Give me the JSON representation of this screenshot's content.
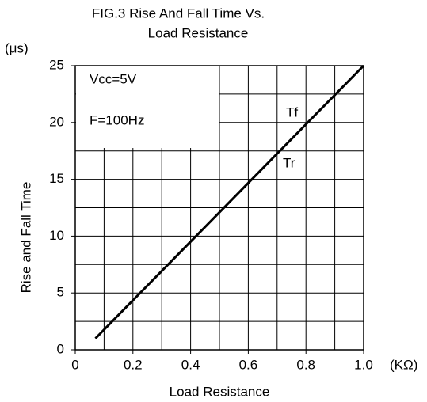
{
  "chart_data": {
    "type": "line",
    "title": [
      "FIG.3 Rise And Fall Time Vs.",
      "Load Resistance"
    ],
    "y_unit": "(μs)",
    "x_unit": "(KΩ)",
    "ylabel": "Rise and Fall Time",
    "xlabel": "Load Resistance",
    "annotations": [
      "Vcc=5V",
      "F=100Hz",
      "Tf",
      "Tr"
    ],
    "series": [
      {
        "x": [
          0.07,
          1.0
        ],
        "values": [
          1,
          25
        ],
        "color": "#000000"
      }
    ],
    "xlim": [
      0,
      1
    ],
    "ylim": [
      0,
      25
    ],
    "xticks": [
      0,
      0.2,
      0.4,
      0.6,
      0.8,
      {
        "value": 1,
        "label": "1.0"
      }
    ],
    "yticks": [
      0,
      5,
      10,
      15,
      20,
      25
    ],
    "xgrid": [
      0.1,
      0.2,
      0.3,
      0.4,
      0.5,
      0.6,
      0.7,
      0.8,
      0.9
    ],
    "ygrid": [
      2.5,
      5,
      7.5,
      10,
      12.5,
      15,
      17.5,
      20,
      22.5
    ],
    "grid": true
  }
}
